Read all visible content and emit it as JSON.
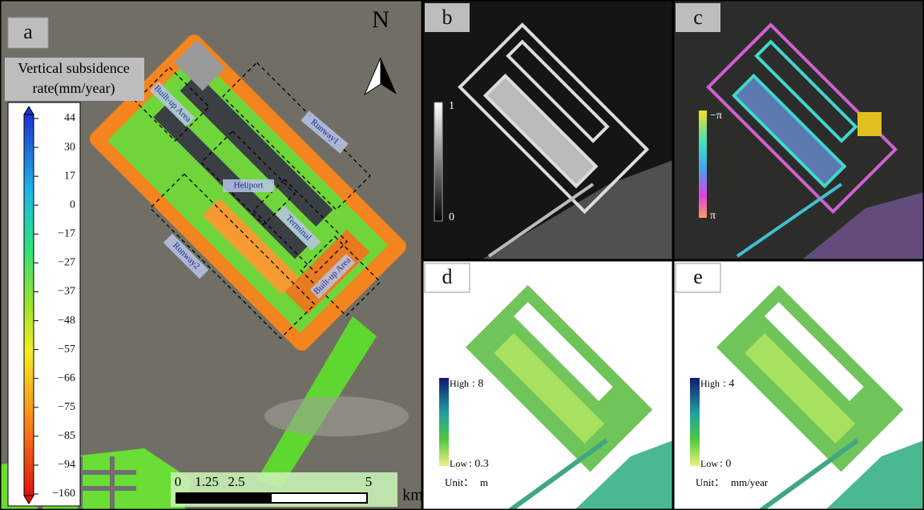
{
  "panels": {
    "a": "a",
    "b": "b",
    "c": "c",
    "d": "d",
    "e": "e"
  },
  "panel_a": {
    "colorbar_title": [
      "Vertical subsidence",
      "rate(mm/year)"
    ],
    "colorbar_ticks": [
      "44",
      "30",
      "17",
      "0",
      "−17",
      "−27",
      "−37",
      "−48",
      "−57",
      "−66",
      "−75",
      "−85",
      "−94",
      "−160"
    ],
    "annotations": [
      "Built-up Area",
      "Runway1",
      "Heliport",
      "Terminal",
      "Runway2",
      "Built-up Area"
    ],
    "north": "N",
    "scale_bar": {
      "ticks": [
        "0",
        "1.25",
        "2.5",
        "5"
      ],
      "unit": "km"
    }
  },
  "panel_b": {
    "colorbar": {
      "top": "1",
      "bottom": "0"
    }
  },
  "panel_c": {
    "colorbar": {
      "top": "−π",
      "bottom": "π"
    }
  },
  "panel_d": {
    "high": "High",
    "high_value": ": 8",
    "low": "Low",
    "low_value": ": 0.3",
    "unit_label": "Unit：",
    "unit": "m"
  },
  "panel_e": {
    "high": "High",
    "high_value": ": 4",
    "low": "Low",
    "low_value": ": 0",
    "unit_label": "Unit：",
    "unit": "mm/year"
  }
}
